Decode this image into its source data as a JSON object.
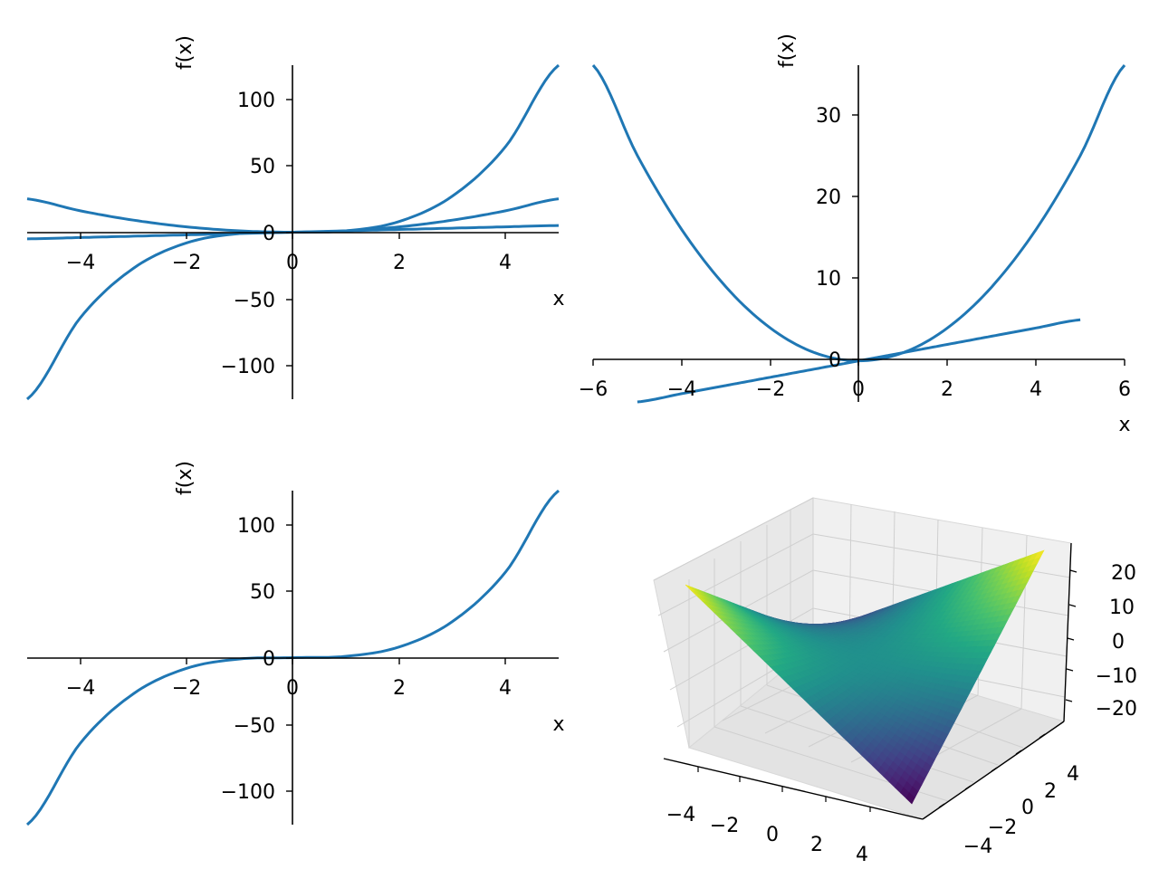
{
  "colors": {
    "line": "#1f77b4",
    "axis": "#000000",
    "pane": "#f2f2f2",
    "grid": "#cccccc"
  },
  "chart_data": [
    {
      "type": "line",
      "xlabel": "x",
      "ylabel": "f(x)",
      "xlim": [
        -5,
        5
      ],
      "ylim": [
        -125,
        125
      ],
      "xticks": [
        "−4",
        "−2",
        "0",
        "2",
        "4"
      ],
      "yticks": [
        "−100",
        "−50",
        "0",
        "50",
        "100"
      ],
      "series": [
        {
          "x": [
            -5,
            -4,
            -3,
            -2,
            -1,
            0,
            1,
            2,
            3,
            4,
            5
          ],
          "y": [
            -5,
            -4,
            -3,
            -2,
            -1,
            0,
            1,
            2,
            3,
            4,
            5
          ]
        },
        {
          "x": [
            -5,
            -4,
            -3,
            -2,
            -1,
            0,
            1,
            2,
            3,
            4,
            5
          ],
          "y": [
            25,
            16,
            9,
            4,
            1,
            0,
            1,
            4,
            9,
            16,
            25
          ]
        },
        {
          "x": [
            -5,
            -4,
            -3,
            -2,
            -1,
            0,
            1,
            2,
            3,
            4,
            5
          ],
          "y": [
            -125,
            -64,
            -27,
            -8,
            -1,
            0,
            1,
            8,
            27,
            64,
            125
          ]
        }
      ]
    },
    {
      "type": "line",
      "xlabel": "x",
      "ylabel": "f(x)",
      "xlim": [
        -6,
        6
      ],
      "ylim": [
        -5,
        36
      ],
      "xticks": [
        "−6",
        "−4",
        "−2",
        "0",
        "2",
        "4",
        "6"
      ],
      "yticks": [
        "0",
        "10",
        "20",
        "30"
      ],
      "series": [
        {
          "x": [
            -5,
            -4,
            -3,
            -2,
            -1,
            0,
            1,
            2,
            3,
            4,
            5
          ],
          "y": [
            -5,
            -4,
            -3,
            -2,
            -1,
            0,
            1,
            2,
            3,
            4,
            5
          ]
        },
        {
          "x": [
            -6,
            -5,
            -4,
            -3,
            -2,
            -1,
            0,
            1,
            2,
            3,
            4,
            5,
            6
          ],
          "y": [
            36,
            25,
            16,
            9,
            4,
            1,
            0,
            1,
            4,
            9,
            16,
            25,
            36
          ]
        }
      ]
    },
    {
      "type": "line",
      "xlabel": "x",
      "ylabel": "f(x)",
      "xlim": [
        -5,
        5
      ],
      "ylim": [
        -125,
        125
      ],
      "xticks": [
        "−4",
        "−2",
        "0",
        "2",
        "4"
      ],
      "yticks": [
        "−100",
        "−50",
        "0",
        "50",
        "100"
      ],
      "series": [
        {
          "x": [
            -5,
            -4,
            -3,
            -2,
            -1,
            0,
            1,
            2,
            3,
            4,
            5
          ],
          "y": [
            -125,
            -64,
            -27,
            -8,
            -1,
            0,
            1,
            8,
            27,
            64,
            125
          ]
        }
      ]
    },
    {
      "type": "surface",
      "colormap": "viridis",
      "xlim": [
        -5,
        5
      ],
      "ylim": [
        -5,
        5
      ],
      "zlim": [
        -25,
        25
      ],
      "x_ticks": [
        "−4",
        "−2",
        "0",
        "2",
        "4"
      ],
      "y_ticks": [
        "−4",
        "−2",
        "0",
        "2",
        "4"
      ],
      "z_ticks": [
        "−20",
        "−10",
        "0",
        "10",
        "20"
      ],
      "corner_values": {
        "x_min_y_min": 25,
        "x_max_y_min": -25,
        "x_min_y_max": -25,
        "x_max_y_max": 25
      },
      "center_value": 0
    }
  ]
}
